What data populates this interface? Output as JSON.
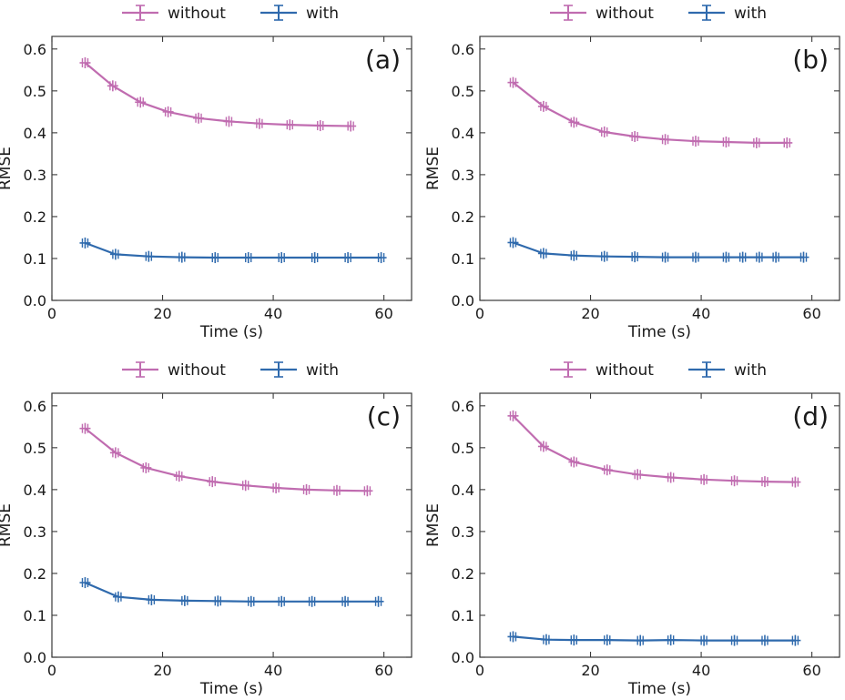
{
  "chart_data": [
    {
      "type": "line",
      "panel_label": "(a)",
      "xlabel": "Time (s)",
      "ylabel": "RMSE",
      "xlim": [
        0,
        65
      ],
      "ylim": [
        0,
        0.63
      ],
      "xticks": [
        0,
        20,
        40,
        60
      ],
      "yticks": [
        0.0,
        0.1,
        0.2,
        0.3,
        0.4,
        0.5,
        0.6
      ],
      "legend": "top-center outside",
      "series": [
        {
          "name": "without",
          "color": "#c06cb0",
          "x": [
            6,
            11,
            16,
            21,
            26.5,
            32,
            37.5,
            43,
            48.5,
            54
          ],
          "y": [
            0.567,
            0.512,
            0.473,
            0.45,
            0.435,
            0.427,
            0.422,
            0.419,
            0.417,
            0.416
          ]
        },
        {
          "name": "with",
          "color": "#2f6aad",
          "x": [
            6,
            11.5,
            17.5,
            23.5,
            29.5,
            35.5,
            41.5,
            47.5,
            53.5,
            59.5
          ],
          "y": [
            0.137,
            0.11,
            0.105,
            0.103,
            0.102,
            0.102,
            0.102,
            0.102,
            0.102,
            0.102
          ]
        }
      ]
    },
    {
      "type": "line",
      "panel_label": "(b)",
      "xlabel": "Time (s)",
      "ylabel": "RMSE",
      "xlim": [
        0,
        65
      ],
      "ylim": [
        0,
        0.63
      ],
      "xticks": [
        0,
        20,
        40,
        60
      ],
      "yticks": [
        0.0,
        0.1,
        0.2,
        0.3,
        0.4,
        0.5,
        0.6
      ],
      "legend": "top-center outside",
      "series": [
        {
          "name": "without",
          "color": "#c06cb0",
          "x": [
            6,
            11.5,
            17,
            22.5,
            28,
            33.5,
            39,
            44.5,
            50,
            55.5
          ],
          "y": [
            0.52,
            0.463,
            0.425,
            0.402,
            0.391,
            0.384,
            0.38,
            0.378,
            0.376,
            0.376
          ]
        },
        {
          "name": "with",
          "color": "#2f6aad",
          "x": [
            6,
            11.5,
            17,
            22.5,
            28,
            33.5,
            39,
            44.5,
            47.5,
            50.5,
            53.5,
            58.5
          ],
          "y": [
            0.138,
            0.112,
            0.107,
            0.105,
            0.104,
            0.103,
            0.103,
            0.103,
            0.103,
            0.103,
            0.103,
            0.103
          ]
        }
      ]
    },
    {
      "type": "line",
      "panel_label": "(c)",
      "xlabel": "Time (s)",
      "ylabel": "RMSE",
      "xlim": [
        0,
        65
      ],
      "ylim": [
        0,
        0.63
      ],
      "xticks": [
        0,
        20,
        40,
        60
      ],
      "yticks": [
        0.0,
        0.1,
        0.2,
        0.3,
        0.4,
        0.5,
        0.6
      ],
      "legend": "top-center outside",
      "series": [
        {
          "name": "without",
          "color": "#c06cb0",
          "x": [
            6,
            11.5,
            17,
            23,
            29,
            35,
            40.5,
            46,
            51.5,
            57
          ],
          "y": [
            0.546,
            0.488,
            0.452,
            0.432,
            0.419,
            0.41,
            0.404,
            0.4,
            0.398,
            0.397
          ]
        },
        {
          "name": "with",
          "color": "#2f6aad",
          "x": [
            6,
            12,
            18,
            24,
            30,
            36,
            41.5,
            47,
            53,
            59
          ],
          "y": [
            0.178,
            0.144,
            0.137,
            0.135,
            0.134,
            0.133,
            0.133,
            0.133,
            0.133,
            0.133
          ]
        }
      ]
    },
    {
      "type": "line",
      "panel_label": "(d)",
      "xlabel": "Time (s)",
      "ylabel": "RMSE",
      "xlim": [
        0,
        65
      ],
      "ylim": [
        0,
        0.63
      ],
      "xticks": [
        0,
        20,
        40,
        60
      ],
      "yticks": [
        0.0,
        0.1,
        0.2,
        0.3,
        0.4,
        0.5,
        0.6
      ],
      "legend": "top-center outside",
      "series": [
        {
          "name": "without",
          "color": "#c06cb0",
          "x": [
            6,
            11.5,
            17,
            23,
            28.5,
            34.5,
            40.5,
            46,
            51.5,
            57
          ],
          "y": [
            0.576,
            0.503,
            0.466,
            0.447,
            0.436,
            0.429,
            0.424,
            0.421,
            0.419,
            0.418
          ]
        },
        {
          "name": "with",
          "color": "#2f6aad",
          "x": [
            6,
            12,
            17,
            23,
            29,
            34.5,
            40.5,
            46,
            51.5,
            57
          ],
          "y": [
            0.049,
            0.042,
            0.041,
            0.041,
            0.04,
            0.041,
            0.04,
            0.04,
            0.04,
            0.04
          ]
        }
      ]
    }
  ]
}
